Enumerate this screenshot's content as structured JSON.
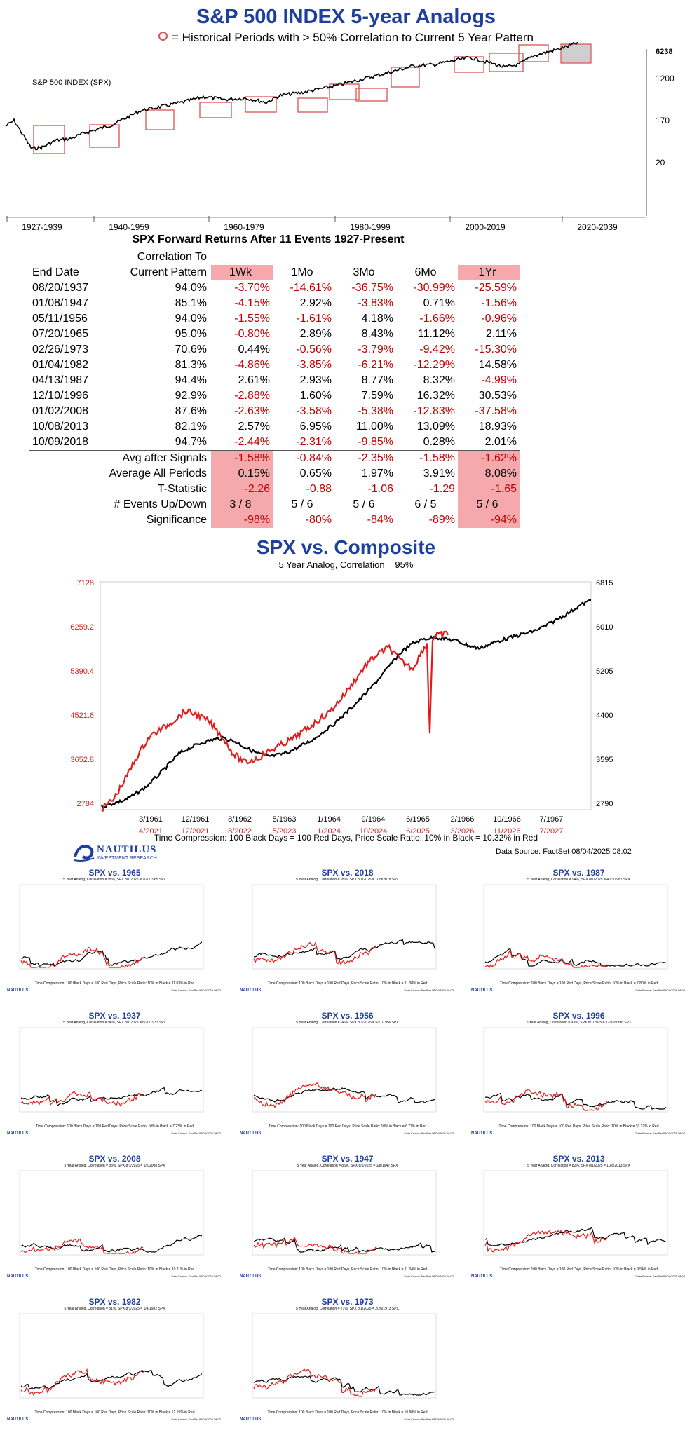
{
  "header": {
    "title": "S&P 500 INDEX 5-year Analogs",
    "subtitle": "= Historical Periods with > 50% Correlation to Current 5 Year Pattern"
  },
  "colors": {
    "title_blue": "#1f3f9c",
    "analog_red": "#e21b1b",
    "negative_red": "#c00000",
    "highlight_pink": "#f6a9ad",
    "box_red": "#d9534f"
  },
  "chart_data": [
    {
      "type": "line",
      "id": "spx-history",
      "series_label": "S&P 500 INDEX (SPX)",
      "yscale": "log",
      "y_ticks": [
        20,
        170,
        1200
      ],
      "last_value": "6238",
      "x_periods": [
        "1927-1939",
        "1940-1959",
        "1960-1979",
        "1980-1999",
        "2000-2019",
        "2020-2039"
      ],
      "analog_boxes_count": 12
    },
    {
      "type": "table",
      "id": "forward-returns",
      "title": "SPX Forward Returns After 11 Events 1927-Present",
      "columns": [
        "End Date",
        "Correlation To Current Pattern",
        "1Wk",
        "1Mo",
        "3Mo",
        "6Mo",
        "1Yr"
      ],
      "col_header_top": "Correlation To",
      "col_header_bottom": "Current Pattern",
      "rows": [
        [
          "08/20/1937",
          "94.0%",
          "-3.70%",
          "-14.61%",
          "-36.75%",
          "-30.99%",
          "-25.59%"
        ],
        [
          "01/08/1947",
          "85.1%",
          "-4.15%",
          "2.92%",
          "-3.83%",
          "0.71%",
          "-1.56%"
        ],
        [
          "05/11/1956",
          "94.0%",
          "-1.55%",
          "-1.61%",
          "4.18%",
          "-1.66%",
          "-0.96%"
        ],
        [
          "07/20/1965",
          "95.0%",
          "-0.80%",
          "2.89%",
          "8.43%",
          "11.12%",
          "2.11%"
        ],
        [
          "02/26/1973",
          "70.6%",
          "0.44%",
          "-0.56%",
          "-3.79%",
          "-9.42%",
          "-15.30%"
        ],
        [
          "01/04/1982",
          "81.3%",
          "-4.86%",
          "-3.85%",
          "-6.21%",
          "-12.29%",
          "14.58%"
        ],
        [
          "04/13/1987",
          "94.4%",
          "2.61%",
          "2.93%",
          "8.77%",
          "8.32%",
          "-4.99%"
        ],
        [
          "12/10/1996",
          "92.9%",
          "-2.88%",
          "1.60%",
          "7.59%",
          "16.32%",
          "30.53%"
        ],
        [
          "01/02/2008",
          "87.6%",
          "-2.63%",
          "-3.58%",
          "-5.38%",
          "-12.83%",
          "-37.58%"
        ],
        [
          "10/08/2013",
          "82.1%",
          "2.57%",
          "6.95%",
          "11.00%",
          "13.09%",
          "18.93%"
        ],
        [
          "10/09/2018",
          "94.7%",
          "-2.44%",
          "-2.31%",
          "-9.85%",
          "0.28%",
          "2.01%"
        ]
      ],
      "summary": [
        [
          "Avg after Signals",
          "-1.58%",
          "-0.84%",
          "-2.35%",
          "-1.58%",
          "-1.62%"
        ],
        [
          "Average All Periods",
          "0.15%",
          "0.65%",
          "1.97%",
          "3.91%",
          "8.08%"
        ],
        [
          "T-Statistic",
          "-2.26",
          "-0.88",
          "-1.06",
          "-1.29",
          "-1.65"
        ],
        [
          "# Events Up/Down",
          "3 / 8",
          "5 / 6",
          "5 / 6",
          "6 / 5",
          "5 / 6"
        ],
        [
          "Significance",
          "-98%",
          "-80%",
          "-84%",
          "-89%",
          "-94%"
        ]
      ]
    },
    {
      "type": "line",
      "id": "spx-vs-composite",
      "title": "SPX vs. Composite",
      "subtitle": "5 Year Analog, Correlation = 95%",
      "left_axis_ticks": [
        "7128",
        "6259.2",
        "5390.4",
        "4521.6",
        "3652.8",
        "2784"
      ],
      "right_axis_ticks": [
        "6815",
        "6010",
        "5205",
        "4400",
        "3595",
        "2790"
      ],
      "x_labels_black": [
        "3/1961",
        "12/1961",
        "8/1962",
        "5/1963",
        "1/1964",
        "9/1964",
        "6/1965",
        "2/1966",
        "10/1966",
        "7/1967"
      ],
      "x_labels_red": [
        "4/2021",
        "12/2021",
        "8/2022",
        "5/2023",
        "1/2024",
        "10/2024",
        "6/2025",
        "3/2026",
        "11/2026",
        "7/2027"
      ],
      "series": [
        {
          "name": "Composite",
          "color": "#000000",
          "values": [
            2840,
            2900,
            2960,
            3080,
            3220,
            3420,
            3640,
            3860,
            3970,
            4060,
            4120,
            4150,
            4080,
            3960,
            3860,
            3800,
            3830,
            3900,
            4010,
            4120,
            4280,
            4440,
            4640,
            4840,
            5060,
            5300,
            5560,
            5800,
            5960,
            6040,
            6070,
            6040,
            6000,
            5910,
            5860,
            5950,
            6020,
            6080,
            6140,
            6200,
            6300,
            6420,
            6540,
            6680,
            6780
          ]
        },
        {
          "name": "SPX",
          "color": "#e21b1b",
          "values": [
            2800,
            2980,
            3380,
            3820,
            4180,
            4320,
            4480,
            4660,
            4600,
            4450,
            4200,
            3850,
            3680,
            3760,
            3900,
            4020,
            4140,
            4300,
            4470,
            4640,
            4900,
            5200,
            5520,
            5740,
            5880,
            5620,
            5480,
            5900,
            6100,
            6150
          ]
        }
      ],
      "footer": "Time Compression: 100 Black Days = 100 Red Days,  Price Scale Ratio: 10% in Black = 10.32% in Red"
    }
  ],
  "branding": {
    "logo_name": "NAUTILUS",
    "logo_sub": "INVESTMENT RESEARCH",
    "data_source": "Data Source: FactSet    08/04/2025 08:02"
  },
  "panels": [
    {
      "title": "SPX vs. 1965",
      "sub": "5 Year Analog, Correlation = 95%,  SPX 8/1/2025  = 7/20/1965 SPX",
      "foot": "Time Compression: 100 Black Days = 100 Red Days,  Price Scale Ratio: 10% in Black = 11.03% in Red"
    },
    {
      "title": "SPX vs. 2018",
      "sub": "5 Year Analog, Correlation = 95%,  SPX 8/1/2025  = 10/9/2018 SPX",
      "foot": "Time Compression: 100 Black Days = 100 Red Days,  Price Scale Ratio: 10% in Black = 11.08% in Red"
    },
    {
      "title": "SPX vs. 1987",
      "sub": "5 Year Analog, Correlation = 94%,  SPX 8/1/2025  = 4/13/1987 SPX",
      "foot": "Time Compression: 100 Black Days = 100 Red Days,  Price Scale Ratio: 10% in Black = 7.80% in Red"
    },
    {
      "title": "SPX vs. 1937",
      "sub": "5 Year Analog, Correlation = 94%,  SPX 8/1/2025  = 8/20/1937 SPX",
      "foot": "Time Compression: 100 Black Days = 100 Red Days,  Price Scale Ratio: 10% in Black = 7.23% in Red"
    },
    {
      "title": "SPX vs. 1956",
      "sub": "5 Year Analog, Correlation = 94%,  SPX 8/1/2025  = 5/11/1956 SPX",
      "foot": "Time Compression: 100 Black Days = 100 Red Days,  Price Scale Ratio: 10% in Black = 6.77% in Red"
    },
    {
      "title": "SPX vs. 1996",
      "sub": "5 Year Analog, Correlation = 93%,  SPX 8/1/2025  = 12/10/1996 SPX",
      "foot": "Time Compression: 100 Black Days = 100 Red Days,  Price Scale Ratio: 10% in Black = 10.32% in Red"
    },
    {
      "title": "SPX vs. 2008",
      "sub": "5 Year Analog, Correlation = 88%,  SPX 8/1/2025  = 1/2/2008 SPX",
      "foot": "Time Compression: 100 Black Days = 100 Red Days,  Price Scale Ratio: 10% in Black = 10.11% in Red"
    },
    {
      "title": "SPX vs. 1947",
      "sub": "5 Year Analog, Correlation = 85%,  SPX 8/1/2025  = 1/8/1947 SPX",
      "foot": "Time Compression: 100 Black Days = 100 Red Days,  Price Scale Ratio: 10% in Black = 11.04% in Red"
    },
    {
      "title": "SPX vs. 2013",
      "sub": "5 Year Analog, Correlation = 82%,  SPX 8/1/2025  = 10/8/2013 SPX",
      "foot": "Time Compression: 100 Black Days = 100 Red Days,  Price Scale Ratio: 10% in Black = 9.54% in Red"
    },
    {
      "title": "SPX vs. 1982",
      "sub": "5 Year Analog, Correlation = 81%,  SPX 8/1/2025  = 1/4/1982 SPX",
      "foot": "Time Compression: 100 Black Days = 100 Red Days,  Price Scale Ratio: 10% in Black = 12.15% in Red"
    },
    {
      "title": "SPX vs. 1973",
      "sub": "5 Year Analog, Correlation = 71%,  SPX 8/1/2025  = 2/26/1973 SPX",
      "foot": "Time Compression: 100 Black Days = 100 Red Days,  Price Scale Ratio: 10% in Black = 10.98% in Red"
    }
  ]
}
